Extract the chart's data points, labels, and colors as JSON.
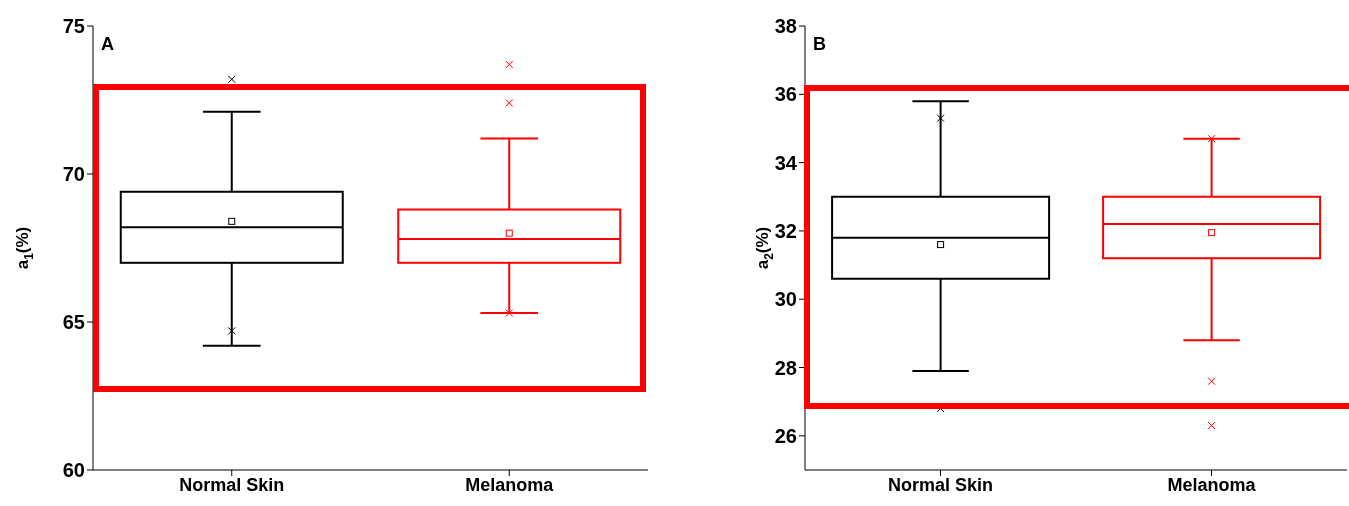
{
  "chart_data": [
    {
      "type": "box",
      "ylabel": "a$_{1}$(%)",
      "annotations": [
        "A"
      ],
      "categories": [
        "Normal Skin",
        "Melanoma"
      ],
      "colors": [
        "#000000",
        "#ff0000"
      ],
      "ylim": [
        60,
        75
      ],
      "yticks": [
        60,
        65,
        70,
        75
      ],
      "marker": "cross",
      "boxes": [
        {
          "low": 64.2,
          "q1": 67.0,
          "median": 68.2,
          "q3": 69.4,
          "high": 72.1,
          "mean": 68.4,
          "outliers": [
            73.2,
            64.7
          ]
        },
        {
          "low": 65.3,
          "q1": 67.0,
          "median": 67.8,
          "q3": 68.8,
          "high": 71.2,
          "mean": 68.0,
          "outliers": [
            73.7,
            72.4,
            65.3
          ]
        }
      ]
    },
    {
      "type": "box",
      "ylabel": "a$_{2}$(%)",
      "annotations": [
        "B"
      ],
      "categories": [
        "Normal Skin",
        "Melanoma"
      ],
      "colors": [
        "#000000",
        "#ff0000"
      ],
      "ylim": [
        25,
        38
      ],
      "yticks": [
        26,
        28,
        30,
        32,
        34,
        36,
        38
      ],
      "marker": "cross",
      "boxes": [
        {
          "low": 27.9,
          "q1": 30.6,
          "median": 31.8,
          "q3": 33.0,
          "high": 35.8,
          "mean": 31.6,
          "outliers": [
            35.3,
            26.8
          ]
        },
        {
          "low": 28.8,
          "q1": 31.2,
          "median": 32.2,
          "q3": 33.0,
          "high": 34.7,
          "mean": 31.95,
          "outliers": [
            34.7,
            27.6,
            26.3
          ]
        }
      ]
    }
  ]
}
